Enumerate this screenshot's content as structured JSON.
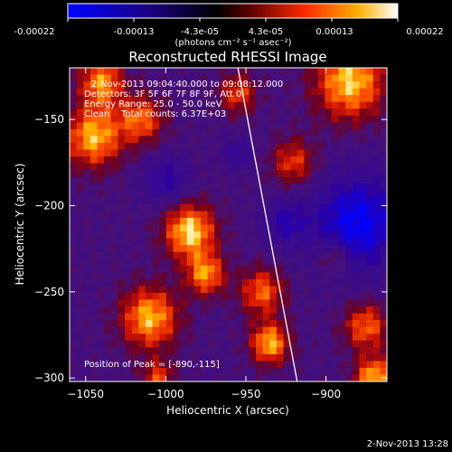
{
  "colorbar": {
    "tick_labels": [
      "-0.00022",
      "-0.00013",
      "-4.3e-05",
      "4.3e-05",
      "0.00013",
      "0.00022"
    ],
    "unit_label": "(photons cm⁻² s⁻¹ asec⁻²)"
  },
  "chart_data": {
    "type": "heatmap",
    "title": "Reconstructed RHESSI Image",
    "xlabel": "Heliocentric X (arcsec)",
    "ylabel": "Heliocentric Y (arcsec)",
    "xlim": [
      -1060,
      -862
    ],
    "ylim": [
      -302,
      -120
    ],
    "x_ticks": [
      -1050,
      -1000,
      -950,
      -900
    ],
    "y_ticks": [
      -150,
      -200,
      -250,
      -300
    ],
    "x_tick_labels": [
      "−1050",
      "−1000",
      "−950",
      "−900"
    ],
    "y_tick_labels": [
      "−150",
      "−200",
      "−250",
      "−300"
    ],
    "value_range": [
      -0.00022,
      0.00022
    ],
    "annotations": [
      "2-Nov-2013 09:04:40.000 to 09:08:12.000",
      "Detectors: 3F 5F 6F 7F 8F 9F, Att 0",
      "Energy Range: 25.0 - 50.0 keV",
      "Clean    Total counts: 6.37E+03"
    ],
    "peak_label": "Position of Peak = [-890,-115]",
    "limb_line": [
      [
        -955,
        -120
      ],
      [
        -918,
        -302
      ]
    ],
    "grid": false
  },
  "footer": {
    "timestamp": "2-Nov-2013 13:28"
  }
}
